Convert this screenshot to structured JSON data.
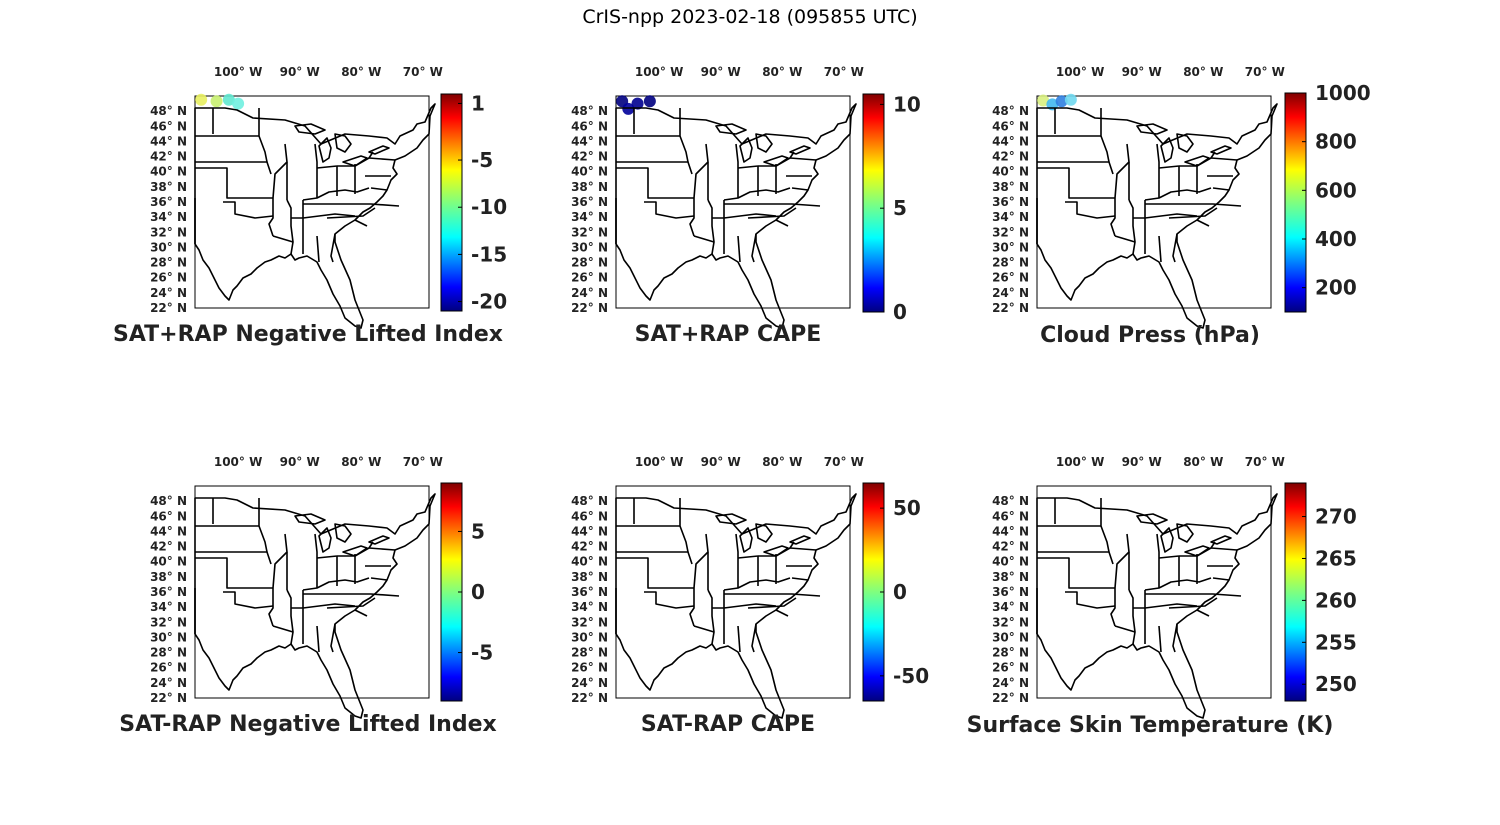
{
  "figure": {
    "title": "CrIS-npp 2023-02-18 (095855 UTC)"
  },
  "map": {
    "lon_range": [
      -107,
      -69
    ],
    "lat_range": [
      22,
      50
    ],
    "lon_ticks": [
      -100,
      -90,
      -80,
      -70
    ],
    "lat_ticks": [
      22,
      24,
      26,
      28,
      30,
      32,
      34,
      36,
      38,
      40,
      42,
      44,
      46,
      48
    ],
    "lon_suffix": "W",
    "lat_suffix": "N"
  },
  "panels": [
    {
      "id": "p1",
      "title": "SAT+RAP Negative Lifted Index",
      "colorbar": {
        "min": -21,
        "max": 2,
        "ticks": [
          1,
          -5,
          -10,
          -15,
          -20
        ],
        "tick_labels": [
          "1",
          "-5",
          "-10",
          "-15",
          "-20"
        ]
      },
      "points": [
        {
          "lon": -106,
          "lat": 49.5,
          "color": "#e8f060"
        },
        {
          "lon": -103.5,
          "lat": 49.3,
          "color": "#c8f070"
        },
        {
          "lon": -101.5,
          "lat": 49.5,
          "color": "#60e8d0"
        },
        {
          "lon": -100,
          "lat": 49.0,
          "color": "#70f0e0"
        }
      ]
    },
    {
      "id": "p2",
      "title": "SAT+RAP CAPE",
      "colorbar": {
        "min": 0,
        "max": 10.5,
        "ticks": [
          10,
          5,
          0
        ],
        "tick_labels": [
          "10",
          "5",
          "0"
        ]
      },
      "points": [
        {
          "lon": -106,
          "lat": 49.3,
          "color": "#000080"
        },
        {
          "lon": -103.5,
          "lat": 49.0,
          "color": "#000090"
        },
        {
          "lon": -101.5,
          "lat": 49.3,
          "color": "#000080"
        },
        {
          "lon": -105,
          "lat": 48.3,
          "color": "#00009a"
        }
      ]
    },
    {
      "id": "p3",
      "title": "Cloud Press (hPa)",
      "colorbar": {
        "min": 100,
        "max": 1000,
        "ticks": [
          1000,
          800,
          600,
          400,
          200
        ],
        "tick_labels": [
          "1000",
          "800",
          "600",
          "400",
          "200"
        ]
      },
      "points": [
        {
          "lon": -106,
          "lat": 49.4,
          "color": "#d8f080"
        },
        {
          "lon": -104.5,
          "lat": 48.9,
          "color": "#40b8f0"
        },
        {
          "lon": -103,
          "lat": 49.3,
          "color": "#3080e0"
        },
        {
          "lon": -101.5,
          "lat": 49.5,
          "color": "#70d8f0"
        }
      ]
    },
    {
      "id": "p4",
      "title": "SAT-RAP Negative Lifted Index",
      "colorbar": {
        "min": -9,
        "max": 9,
        "ticks": [
          5,
          0,
          -5
        ],
        "tick_labels": [
          "5",
          "0",
          "-5"
        ]
      },
      "points": []
    },
    {
      "id": "p5",
      "title": "SAT-RAP CAPE",
      "colorbar": {
        "min": -65,
        "max": 65,
        "ticks": [
          50,
          0,
          -50
        ],
        "tick_labels": [
          "50",
          "0",
          "-50"
        ]
      },
      "points": []
    },
    {
      "id": "p6",
      "title": "Surface Skin Temperature (K)",
      "colorbar": {
        "min": 248,
        "max": 274,
        "ticks": [
          270,
          265,
          260,
          255,
          250
        ],
        "tick_labels": [
          "270",
          "265",
          "260",
          "255",
          "250"
        ]
      },
      "points": []
    }
  ]
}
